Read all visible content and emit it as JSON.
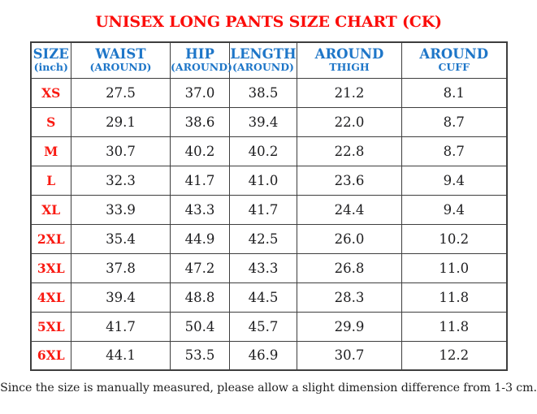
{
  "page": {
    "title": "UNISEX LONG PANTS SIZE CHART (CK)",
    "footnote": "Since the size is manually measured, please allow a slight dimension difference from 1-3 cm."
  },
  "table": {
    "columns": [
      {
        "id": "size",
        "line1": "SIZE",
        "line2": "(inch)"
      },
      {
        "id": "waist",
        "line1": "WAIST",
        "line2": "(AROUND)"
      },
      {
        "id": "hip",
        "line1": "HIP",
        "line2": "(AROUND)"
      },
      {
        "id": "length",
        "line1": "LENGTH",
        "line2": "(AROUND)"
      },
      {
        "id": "around-thigh",
        "line1": "AROUND",
        "line2": "THIGH"
      },
      {
        "id": "around-cuff",
        "line1": "AROUND",
        "line2": "CUFF"
      }
    ],
    "rows": [
      {
        "size": "XS",
        "values": [
          "27.5",
          "37.0",
          "38.5",
          "21.2",
          "8.1"
        ]
      },
      {
        "size": "S",
        "values": [
          "29.1",
          "38.6",
          "39.4",
          "22.0",
          "8.7"
        ]
      },
      {
        "size": "M",
        "values": [
          "30.7",
          "40.2",
          "40.2",
          "22.8",
          "8.7"
        ]
      },
      {
        "size": "L",
        "values": [
          "32.3",
          "41.7",
          "41.0",
          "23.6",
          "9.4"
        ]
      },
      {
        "size": "XL",
        "values": [
          "33.9",
          "43.3",
          "41.7",
          "24.4",
          "9.4"
        ]
      },
      {
        "size": "2XL",
        "values": [
          "35.4",
          "44.9",
          "42.5",
          "26.0",
          "10.2"
        ]
      },
      {
        "size": "3XL",
        "values": [
          "37.8",
          "47.2",
          "43.3",
          "26.8",
          "11.0"
        ]
      },
      {
        "size": "4XL",
        "values": [
          "39.4",
          "48.8",
          "44.5",
          "28.3",
          "11.8"
        ]
      },
      {
        "size": "5XL",
        "values": [
          "41.7",
          "50.4",
          "45.7",
          "29.9",
          "11.8"
        ]
      },
      {
        "size": "6XL",
        "values": [
          "44.1",
          "53.5",
          "46.9",
          "30.7",
          "12.2"
        ]
      }
    ]
  },
  "colors": {
    "title_red": "#fb0d0a",
    "label_red": "#f91a12",
    "header_blue": "#1e76c8",
    "value_black": "#1c1c1e",
    "border_gray": "#3e3e3e",
    "page_bg": "#ffffff"
  }
}
